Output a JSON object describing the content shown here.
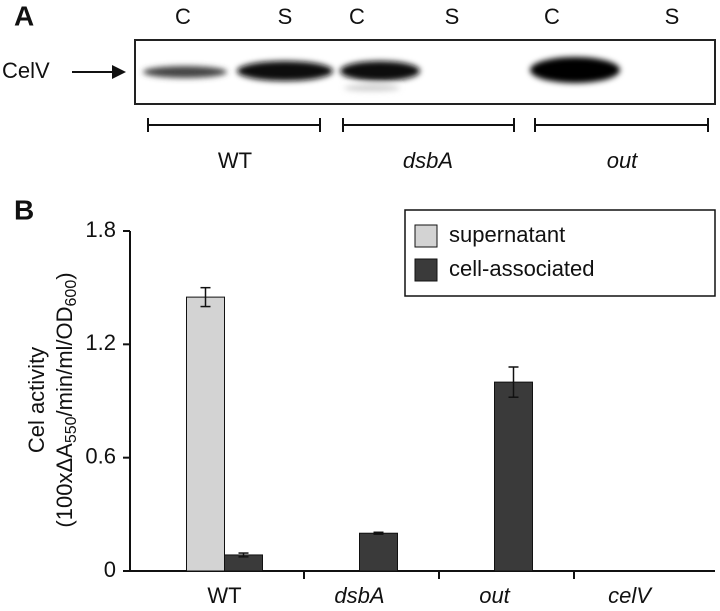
{
  "panel_a": {
    "label": "A",
    "lanes": [
      "C",
      "S",
      "C",
      "S",
      "C",
      "S"
    ],
    "protein": "CelV",
    "groups": [
      "WT",
      "dsbA",
      "out"
    ]
  },
  "chart_data": {
    "type": "bar",
    "panel_label": "B",
    "ylabel": "Cel activity",
    "ylabel_units": [
      "(100xΔA",
      "550",
      "/min/ml/OD",
      "600",
      ")"
    ],
    "categories": [
      "WT",
      "dsbA",
      "out",
      "celV"
    ],
    "series": [
      {
        "name": "supernatant",
        "color": "#d3d3d3",
        "values": [
          1.45,
          null,
          null,
          null
        ],
        "errors": [
          0.05,
          null,
          null,
          null
        ]
      },
      {
        "name": "cell-associated",
        "color": "#3a3a3a",
        "values": [
          0.085,
          0.2,
          1.0,
          null
        ],
        "errors": [
          0.01,
          0.005,
          0.08,
          null
        ]
      }
    ],
    "ylim": [
      0,
      1.8
    ],
    "yticks": [
      0,
      0.6,
      1.2,
      1.8
    ],
    "legend": "upper right"
  }
}
